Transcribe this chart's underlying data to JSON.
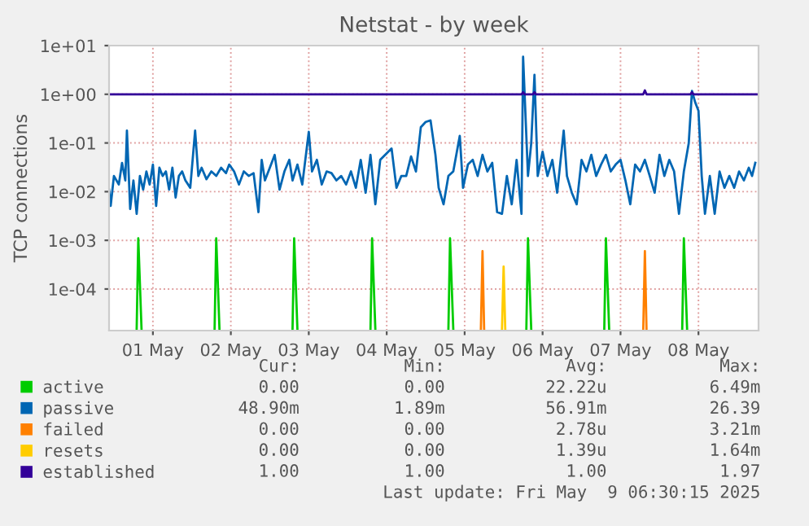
{
  "chart_data": {
    "type": "line",
    "title": "Netstat - by week",
    "ylabel": "TCP connections",
    "log": "y",
    "grid": true,
    "legend": "bottom",
    "marker": "none",
    "line_style": "solid",
    "xlim": [
      "2025-04-30T22:30",
      "2025-05-09T06:30"
    ],
    "xticks": [
      {
        "value": "2025-05-01T12:00",
        "label": "01 May"
      },
      {
        "value": "2025-05-02T12:00",
        "label": "02 May"
      },
      {
        "value": "2025-05-03T12:00",
        "label": "03 May"
      },
      {
        "value": "2025-05-04T12:00",
        "label": "04 May"
      },
      {
        "value": "2025-05-05T12:00",
        "label": "05 May"
      },
      {
        "value": "2025-05-06T12:00",
        "label": "06 May"
      },
      {
        "value": "2025-05-07T12:00",
        "label": "07 May"
      },
      {
        "value": "2025-05-08T12:00",
        "label": "08 May"
      }
    ],
    "ylim": [
      1.4e-05,
      10
    ],
    "yticks": [
      {
        "value": 10,
        "label": "1e+01"
      },
      {
        "value": 1,
        "label": "1e+00"
      },
      {
        "value": 0.1,
        "label": "1e-01"
      },
      {
        "value": 0.01,
        "label": "1e-02"
      },
      {
        "value": 0.001,
        "label": "1e-03"
      },
      {
        "value": 0.0001,
        "label": "1e-04"
      }
    ],
    "series": [
      {
        "name": "active",
        "color": "#00cc00",
        "x": [
          "2025-05-01T07:00",
          "2025-05-01T07:30",
          "2025-05-01T08:30",
          "2025-05-01T12:00",
          "2025-05-02T07:00",
          "2025-05-02T07:30",
          "2025-05-02T08:30",
          "2025-05-02T12:00",
          "2025-05-03T07:00",
          "2025-05-03T07:30",
          "2025-05-03T08:30",
          "2025-05-03T12:00",
          "2025-05-04T07:00",
          "2025-05-04T07:30",
          "2025-05-04T08:30",
          "2025-05-04T12:00",
          "2025-05-05T07:00",
          "2025-05-05T07:30",
          "2025-05-05T08:30",
          "2025-05-05T12:00",
          "2025-05-06T07:00",
          "2025-05-06T07:30",
          "2025-05-06T08:30",
          "2025-05-06T12:00",
          "2025-05-07T07:00",
          "2025-05-07T07:30",
          "2025-05-07T08:30",
          "2025-05-07T12:00",
          "2025-05-08T07:00",
          "2025-05-08T07:30",
          "2025-05-08T08:30"
        ],
        "values": [
          1.5e-05,
          0.0011,
          1.5e-05,
          null,
          1.5e-05,
          0.0011,
          1.5e-05,
          null,
          1.5e-05,
          0.0011,
          1.5e-05,
          null,
          1.5e-05,
          0.0011,
          1.5e-05,
          null,
          1.5e-05,
          0.0011,
          1.5e-05,
          null,
          1.5e-05,
          0.0011,
          1.5e-05,
          null,
          1.5e-05,
          0.0011,
          1.5e-05,
          null,
          1.5e-05,
          0.0011,
          1.5e-05
        ]
      },
      {
        "name": "passive",
        "color": "#0066b3",
        "x": [
          "2025-04-30T22:30",
          "2025-04-30T23:00",
          "2025-05-01T00:00",
          "2025-05-01T01:30",
          "2025-05-01T02:30",
          "2025-05-01T03:30",
          "2025-05-01T04:00",
          "2025-05-01T05:00",
          "2025-05-01T06:00",
          "2025-05-01T07:00",
          "2025-05-01T08:00",
          "2025-05-01T09:00",
          "2025-05-01T10:00",
          "2025-05-01T11:00",
          "2025-05-01T12:00",
          "2025-05-01T13:00",
          "2025-05-01T14:00",
          "2025-05-01T15:00",
          "2025-05-01T16:00",
          "2025-05-01T17:00",
          "2025-05-01T18:00",
          "2025-05-01T19:00",
          "2025-05-01T20:00",
          "2025-05-01T21:00",
          "2025-05-01T22:00",
          "2025-05-01T23:30",
          "2025-05-02T01:00",
          "2025-05-02T02:00",
          "2025-05-02T03:00",
          "2025-05-02T04:30",
          "2025-05-02T06:00",
          "2025-05-02T07:30",
          "2025-05-02T09:00",
          "2025-05-02T10:30",
          "2025-05-02T11:30",
          "2025-05-02T13:00",
          "2025-05-02T14:30",
          "2025-05-02T16:00",
          "2025-05-02T17:30",
          "2025-05-02T19:00",
          "2025-05-02T20:30",
          "2025-05-02T21:30",
          "2025-05-02T22:30",
          "2025-05-03T00:00",
          "2025-05-03T01:30",
          "2025-05-03T03:00",
          "2025-05-03T04:30",
          "2025-05-03T06:00",
          "2025-05-03T07:00",
          "2025-05-03T08:30",
          "2025-05-03T10:00",
          "2025-05-03T12:00",
          "2025-05-03T13:00",
          "2025-05-03T14:30",
          "2025-05-03T16:00",
          "2025-05-03T17:30",
          "2025-05-03T19:00",
          "2025-05-03T20:30",
          "2025-05-03T22:00",
          "2025-05-03T23:30",
          "2025-05-04T01:00",
          "2025-05-04T02:30",
          "2025-05-04T04:00",
          "2025-05-04T05:30",
          "2025-05-04T07:00",
          "2025-05-04T08:30",
          "2025-05-04T10:00",
          "2025-05-04T11:30",
          "2025-05-04T13:30",
          "2025-05-04T15:00",
          "2025-05-04T16:30",
          "2025-05-04T18:00",
          "2025-05-04T19:30",
          "2025-05-04T21:00",
          "2025-05-04T22:30",
          "2025-05-05T00:00",
          "2025-05-05T01:30",
          "2025-05-05T03:00",
          "2025-05-05T04:00",
          "2025-05-05T05:30",
          "2025-05-05T07:00",
          "2025-05-05T08:30",
          "2025-05-05T10:30",
          "2025-05-05T11:30",
          "2025-05-05T13:00",
          "2025-05-05T14:30",
          "2025-05-05T16:00",
          "2025-05-05T17:30",
          "2025-05-05T19:00",
          "2025-05-05T20:30",
          "2025-05-05T22:00",
          "2025-05-05T23:30",
          "2025-05-06T01:00",
          "2025-05-06T02:30",
          "2025-05-06T04:00",
          "2025-05-06T05:30",
          "2025-05-06T06:00",
          "2025-05-06T07:30",
          "2025-05-06T08:30",
          "2025-05-06T09:30",
          "2025-05-06T10:30",
          "2025-05-06T12:00",
          "2025-05-06T13:30",
          "2025-05-06T15:00",
          "2025-05-06T16:30",
          "2025-05-06T18:30",
          "2025-05-06T19:30",
          "2025-05-06T21:00",
          "2025-05-06T22:30",
          "2025-05-07T00:00",
          "2025-05-07T01:30",
          "2025-05-07T03:00",
          "2025-05-07T04:30",
          "2025-05-07T06:00",
          "2025-05-07T07:30",
          "2025-05-07T09:00",
          "2025-05-07T10:30",
          "2025-05-07T12:00",
          "2025-05-07T13:30",
          "2025-05-07T15:00",
          "2025-05-07T16:30",
          "2025-05-07T18:00",
          "2025-05-07T19:30",
          "2025-05-07T21:00",
          "2025-05-07T22:30",
          "2025-05-08T00:00",
          "2025-05-08T01:30",
          "2025-05-08T03:00",
          "2025-05-08T04:30",
          "2025-05-08T06:00",
          "2025-05-08T07:30",
          "2025-05-08T09:00",
          "2025-05-08T10:00",
          "2025-05-08T11:00",
          "2025-05-08T12:00",
          "2025-05-08T13:00",
          "2025-05-08T14:00",
          "2025-05-08T15:30",
          "2025-05-08T17:00",
          "2025-05-08T18:30",
          "2025-05-08T20:00",
          "2025-05-08T21:30",
          "2025-05-08T23:00",
          "2025-05-09T00:30",
          "2025-05-09T02:00",
          "2025-05-09T03:30",
          "2025-05-09T04:30",
          "2025-05-09T05:30"
        ],
        "values": [
          0.011,
          0.0051,
          0.021,
          0.014,
          0.039,
          0.017,
          0.18,
          0.0044,
          0.017,
          0.0035,
          0.021,
          0.011,
          0.026,
          0.014,
          0.036,
          0.0051,
          0.031,
          0.021,
          0.026,
          0.011,
          0.031,
          0.0076,
          0.021,
          0.026,
          0.017,
          0.012,
          0.18,
          0.021,
          0.031,
          0.018,
          0.026,
          0.021,
          0.031,
          0.024,
          0.036,
          0.026,
          0.014,
          0.026,
          0.021,
          0.024,
          0.0038,
          0.045,
          0.017,
          0.031,
          0.057,
          0.011,
          0.026,
          0.045,
          0.017,
          0.036,
          0.014,
          0.17,
          0.026,
          0.045,
          0.014,
          0.026,
          0.024,
          0.017,
          0.021,
          0.014,
          0.026,
          0.012,
          0.045,
          0.0095,
          0.057,
          0.0055,
          0.045,
          0.057,
          0.077,
          0.012,
          0.021,
          0.021,
          0.053,
          0.026,
          0.21,
          0.27,
          0.29,
          0.057,
          0.012,
          0.0055,
          0.021,
          0.026,
          0.14,
          0.012,
          0.036,
          0.045,
          0.021,
          0.057,
          0.026,
          0.039,
          0.0038,
          0.0035,
          0.021,
          0.0055,
          0.045,
          0.0035,
          5.9,
          0.021,
          0.098,
          2.5,
          0.021,
          0.066,
          0.021,
          0.045,
          0.0095,
          0.18,
          0.021,
          0.0095,
          0.0055,
          0.045,
          0.026,
          0.057,
          0.021,
          0.036,
          0.057,
          0.026,
          0.036,
          0.045,
          0.017,
          0.0055,
          0.036,
          0.026,
          0.045,
          0.021,
          0.0095,
          0.057,
          0.021,
          0.045,
          0.026,
          0.0035,
          0.026,
          0.098,
          1.17,
          0.68,
          0.46,
          0.021,
          0.0035,
          0.021,
          0.0035,
          0.026,
          0.012,
          0.021,
          0.012,
          0.026,
          0.017,
          0.031,
          0.021,
          0.039
        ]
      },
      {
        "name": "failed",
        "color": "#ff8000",
        "x": [
          "2025-05-05T17:00",
          "2025-05-05T17:30",
          "2025-05-05T18:00",
          "2025-05-06T12:00",
          "2025-05-07T19:00",
          "2025-05-07T19:30",
          "2025-05-07T20:00"
        ],
        "values": [
          1.5e-05,
          0.0006,
          1.5e-05,
          null,
          1.5e-05,
          0.0006,
          1.5e-05
        ]
      },
      {
        "name": "resets",
        "color": "#ffcc00",
        "x": [
          "2025-05-05T23:30",
          "2025-05-06T00:00",
          "2025-05-06T00:30"
        ],
        "values": [
          1.5e-05,
          0.00029,
          1.5e-05
        ]
      },
      {
        "name": "established",
        "color": "#330099",
        "x": [
          "2025-04-30T22:30",
          "2025-05-06T05:30",
          "2025-05-06T06:00",
          "2025-05-06T06:30",
          "2025-05-06T09:00",
          "2025-05-06T09:30",
          "2025-05-06T10:00",
          "2025-05-07T19:00",
          "2025-05-07T19:30",
          "2025-05-07T20:00",
          "2025-05-08T09:30",
          "2025-05-08T10:00",
          "2025-05-08T10:30",
          "2025-05-09T06:30"
        ],
        "values": [
          1,
          1,
          1.1,
          1,
          1,
          1.1,
          1,
          1,
          1.2,
          1,
          1,
          1.1,
          1,
          1
        ]
      }
    ],
    "annotations": [
      "Cur:",
      "Min:",
      "Avg:",
      "Max:",
      "0.00",
      "0.00",
      "22.22u",
      "6.49m",
      "48.90m",
      "1.89m",
      "56.91m",
      "26.39",
      "0.00",
      "0.00",
      "2.78u",
      "3.21m",
      "0.00",
      "0.00",
      "1.39u",
      "1.64m",
      "1.00",
      "1.00",
      "1.00",
      "1.97",
      "Last update: Fri May  9 06:30:15 2025"
    ]
  }
}
